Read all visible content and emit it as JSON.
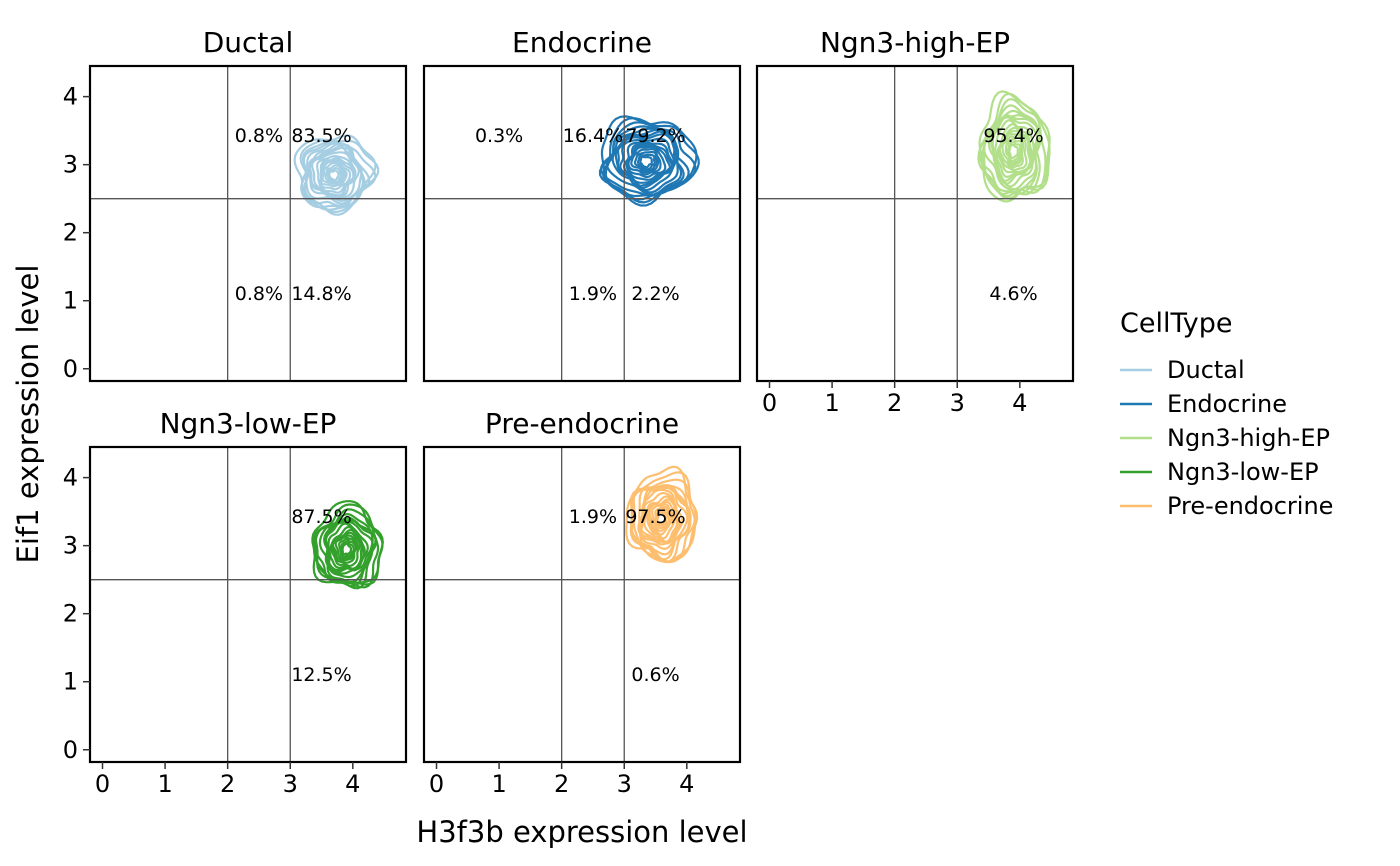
{
  "chart_data": {
    "type": "contour",
    "xlabel": "H3f3b expression level",
    "ylabel": "Eif1 expression level",
    "xlim": [
      -0.2,
      4.85
    ],
    "ylim": [
      -0.18,
      4.45
    ],
    "x_ticks": [
      0,
      1,
      2,
      3,
      4
    ],
    "y_ticks": [
      0,
      1,
      2,
      3,
      4
    ],
    "thresholds": {
      "x": [
        2,
        3
      ],
      "y": 2.5
    },
    "legend": {
      "title": "CellType",
      "position": "right"
    },
    "panels": [
      {
        "name": "Ductal",
        "color": "#A6CEE3",
        "center": [
          3.7,
          2.85
        ],
        "spread": [
          0.6,
          0.55
        ],
        "quadrant_labels": [
          {
            "x": 2.5,
            "y": 3.42,
            "text": "0.8%"
          },
          {
            "x": 3.5,
            "y": 3.42,
            "text": "83.5%"
          },
          {
            "x": 2.5,
            "y": 1.1,
            "text": "0.8%"
          },
          {
            "x": 3.5,
            "y": 1.1,
            "text": "14.8%"
          }
        ]
      },
      {
        "name": "Endocrine",
        "color": "#1F78B4",
        "center": [
          3.35,
          3.05
        ],
        "spread": [
          0.75,
          0.6
        ],
        "quadrant_labels": [
          {
            "x": 1.0,
            "y": 3.42,
            "text": "0.3%"
          },
          {
            "x": 2.5,
            "y": 3.42,
            "text": "16.4%"
          },
          {
            "x": 3.5,
            "y": 3.42,
            "text": "79.2%"
          },
          {
            "x": 2.5,
            "y": 1.1,
            "text": "1.9%"
          },
          {
            "x": 3.5,
            "y": 1.1,
            "text": "2.2%"
          }
        ]
      },
      {
        "name": "Ngn3-high-EP",
        "color": "#B2DF8A",
        "center": [
          3.9,
          3.2
        ],
        "spread": [
          0.55,
          0.75
        ],
        "quadrant_labels": [
          {
            "x": 3.9,
            "y": 3.42,
            "text": "95.4%"
          },
          {
            "x": 3.9,
            "y": 1.1,
            "text": "4.6%"
          }
        ]
      },
      {
        "name": "Ngn3-low-EP",
        "color": "#33A02C",
        "center": [
          3.9,
          2.95
        ],
        "spread": [
          0.55,
          0.6
        ],
        "quadrant_labels": [
          {
            "x": 3.5,
            "y": 3.42,
            "text": "87.5%"
          },
          {
            "x": 3.5,
            "y": 1.1,
            "text": "12.5%"
          }
        ]
      },
      {
        "name": "Pre-endocrine",
        "color": "#FDBF6F",
        "center": [
          3.6,
          3.4
        ],
        "spread": [
          0.55,
          0.65
        ],
        "quadrant_labels": [
          {
            "x": 2.5,
            "y": 3.42,
            "text": "1.9%"
          },
          {
            "x": 3.5,
            "y": 3.42,
            "text": "97.5%"
          },
          {
            "x": 3.5,
            "y": 1.1,
            "text": "0.6%"
          }
        ]
      }
    ]
  }
}
